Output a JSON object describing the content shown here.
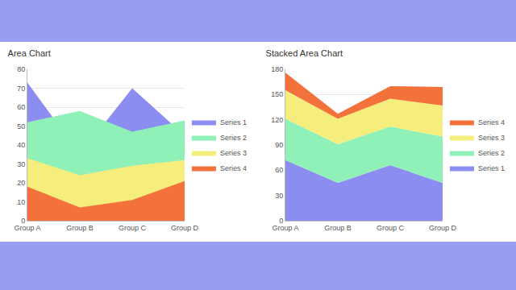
{
  "chart_data": [
    {
      "type": "area",
      "title": "Area Chart",
      "stacked": false,
      "categories": [
        "Group A",
        "Group B",
        "Group C",
        "Group D"
      ],
      "series": [
        {
          "name": "Series 1",
          "color": "#8c8df0",
          "values": [
            73,
            35,
            70,
            45
          ]
        },
        {
          "name": "Series 2",
          "color": "#8ff0b8",
          "values": [
            52,
            58,
            47,
            53
          ]
        },
        {
          "name": "Series 3",
          "color": "#f6ee7c",
          "values": [
            33,
            24,
            29,
            32
          ]
        },
        {
          "name": "Series 4",
          "color": "#f3723c",
          "values": [
            18,
            7,
            11,
            21
          ]
        }
      ],
      "ylim": [
        0,
        80
      ],
      "yticks": [
        0,
        10,
        20,
        30,
        40,
        50,
        60,
        70,
        80
      ],
      "grid": true,
      "legend": "right"
    },
    {
      "type": "area",
      "title": "Stacked Area Chart",
      "stacked": true,
      "categories": [
        "Group A",
        "Group B",
        "Group C",
        "Group D"
      ],
      "series": [
        {
          "name": "Series 1",
          "color": "#8c8df0",
          "values": [
            72,
            45,
            66,
            45
          ]
        },
        {
          "name": "Series 2",
          "color": "#8ff0b8",
          "values": [
            49,
            46,
            46,
            55
          ]
        },
        {
          "name": "Series 3",
          "color": "#f6ee7c",
          "values": [
            34,
            30,
            33,
            37
          ]
        },
        {
          "name": "Series 4",
          "color": "#f3723c",
          "values": [
            21,
            6,
            15,
            22
          ]
        }
      ],
      "ylim": [
        0,
        180
      ],
      "yticks": [
        0,
        30,
        60,
        90,
        120,
        150,
        180
      ],
      "grid": true,
      "legend": "right"
    }
  ]
}
